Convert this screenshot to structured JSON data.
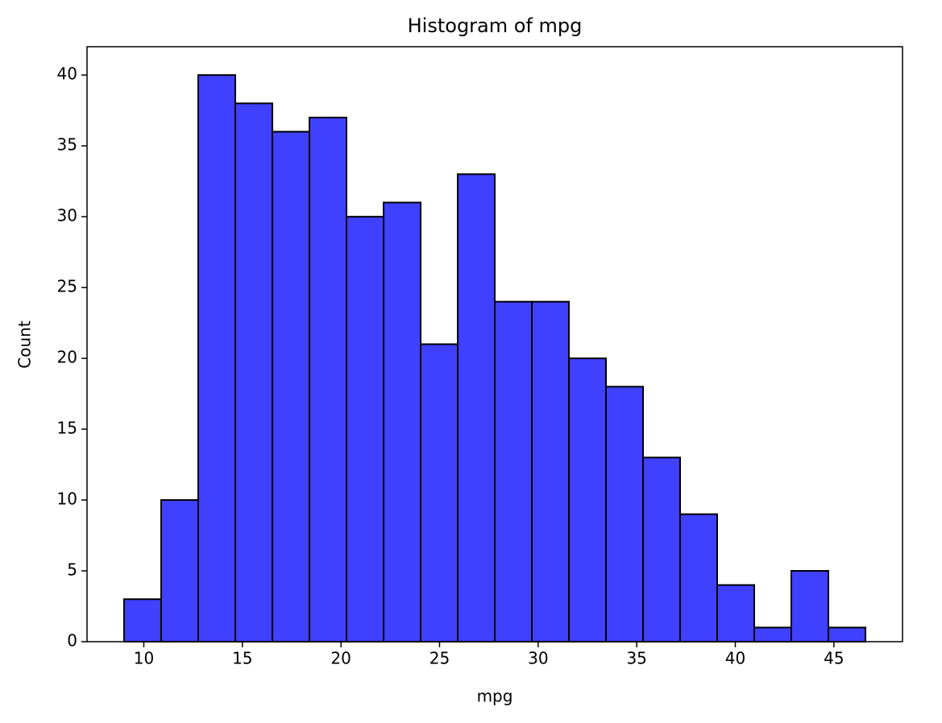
{
  "chart_data": {
    "type": "histogram",
    "title": "Histogram of mpg",
    "x_label": "mpg",
    "y_label": "Count",
    "bins": [
      9,
      10.88,
      12.76,
      14.64,
      16.52,
      18.4,
      20.28,
      22.16,
      24.04,
      25.92,
      27.8,
      29.68,
      31.56,
      33.44,
      35.32,
      37.2,
      39.08,
      40.96,
      42.84,
      44.72,
      46.6
    ],
    "values": [
      3,
      10,
      40,
      38,
      36,
      37,
      30,
      31,
      21,
      33,
      24,
      24,
      20,
      18,
      13,
      9,
      4,
      1,
      5,
      1
    ],
    "color": "#4040ff",
    "edgecolor": "#000000",
    "xlim": [
      7.12,
      48.48
    ],
    "xticks": [
      10,
      15,
      20,
      25,
      30,
      35,
      40,
      45
    ],
    "ylim": [
      0,
      42
    ],
    "yticks": [
      0,
      5,
      10,
      15,
      20,
      25,
      30,
      35,
      40
    ],
    "grid": false
  }
}
